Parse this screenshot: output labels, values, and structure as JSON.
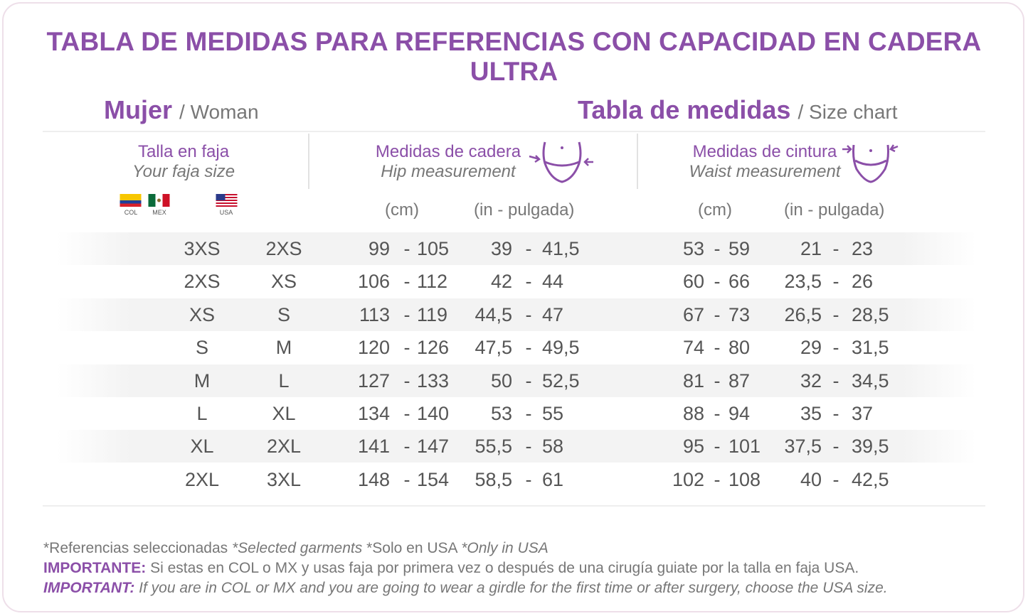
{
  "title": "TABLA DE MEDIDAS PARA REFERENCIAS CON CAPACIDAD EN CADERA ULTRA",
  "left_header": {
    "main": "Mujer",
    "sub": "/ Woman"
  },
  "right_header": {
    "main": "Tabla de medidas",
    "sub": "/ Size chart"
  },
  "columns": {
    "size": {
      "es": "Talla en faja",
      "en": "Your faja size"
    },
    "hip": {
      "es": "Medidas de cadera",
      "en": "Hip measurement",
      "icon": "hip-icon"
    },
    "waist": {
      "es": "Medidas de cintura",
      "en": "Waist measurement",
      "icon": "waist-icon"
    }
  },
  "flags": {
    "col": "COL",
    "mex": "MEX",
    "usa": "USA"
  },
  "units": {
    "hip_cm": "(cm)",
    "hip_in": "(in - pulgada)",
    "waist_cm": "(cm)",
    "waist_in": "(in - pulgada)"
  },
  "rows": [
    {
      "col": "3XS",
      "usa": "2XS",
      "hip_cm_min": "99",
      "hip_cm_max": "105",
      "hip_in_min": "39",
      "hip_in_max": "41,5",
      "waist_cm_min": "53",
      "waist_cm_max": "59",
      "waist_in_min": "21",
      "waist_in_max": "23"
    },
    {
      "col": "2XS",
      "usa": "XS",
      "hip_cm_min": "106",
      "hip_cm_max": "112",
      "hip_in_min": "42",
      "hip_in_max": "44",
      "waist_cm_min": "60",
      "waist_cm_max": "66",
      "waist_in_min": "23,5",
      "waist_in_max": "26"
    },
    {
      "col": "XS",
      "usa": "S",
      "hip_cm_min": "113",
      "hip_cm_max": "119",
      "hip_in_min": "44,5",
      "hip_in_max": "47",
      "waist_cm_min": "67",
      "waist_cm_max": "73",
      "waist_in_min": "26,5",
      "waist_in_max": "28,5"
    },
    {
      "col": "S",
      "usa": "M",
      "hip_cm_min": "120",
      "hip_cm_max": "126",
      "hip_in_min": "47,5",
      "hip_in_max": "49,5",
      "waist_cm_min": "74",
      "waist_cm_max": "80",
      "waist_in_min": "29",
      "waist_in_max": "31,5"
    },
    {
      "col": "M",
      "usa": "L",
      "hip_cm_min": "127",
      "hip_cm_max": "133",
      "hip_in_min": "50",
      "hip_in_max": "52,5",
      "waist_cm_min": "81",
      "waist_cm_max": "87",
      "waist_in_min": "32",
      "waist_in_max": "34,5"
    },
    {
      "col": "L",
      "usa": "XL",
      "hip_cm_min": "134",
      "hip_cm_max": "140",
      "hip_in_min": "53",
      "hip_in_max": "55",
      "waist_cm_min": "88",
      "waist_cm_max": "94",
      "waist_in_min": "35",
      "waist_in_max": "37"
    },
    {
      "col": "XL",
      "usa": "2XL",
      "hip_cm_min": "141",
      "hip_cm_max": "147",
      "hip_in_min": "55,5",
      "hip_in_max": "58",
      "waist_cm_min": "95",
      "waist_cm_max": "101",
      "waist_in_min": "37,5",
      "waist_in_max": "39,5"
    },
    {
      "col": "2XL",
      "usa": "3XL",
      "hip_cm_min": "148",
      "hip_cm_max": "154",
      "hip_in_min": "58,5",
      "hip_in_max": "61",
      "waist_cm_min": "102",
      "waist_cm_max": "108",
      "waist_in_min": "40",
      "waist_in_max": "42,5"
    }
  ],
  "range_separator": "-",
  "notes": {
    "line1_es": "*Referencias seleccionadas ",
    "line1_en": "*Selected garments",
    "line1_es2": " *Solo en USA ",
    "line1_en2": "*Only in USA",
    "line2_bold": "IMPORTANTE:",
    "line2_text": " Si estas en COL o MX y usas faja por primera vez o después de una cirugía guiate por la talla en faja USA.",
    "line3_bold": "IMPORTANT:",
    "line3_text": " If you are in COL or MX and you are going to wear a girdle for the first time or after surgery, choose the USA size."
  },
  "colors": {
    "accent": "#8b4fa8",
    "text": "#555555",
    "border": "#eedfe9"
  }
}
